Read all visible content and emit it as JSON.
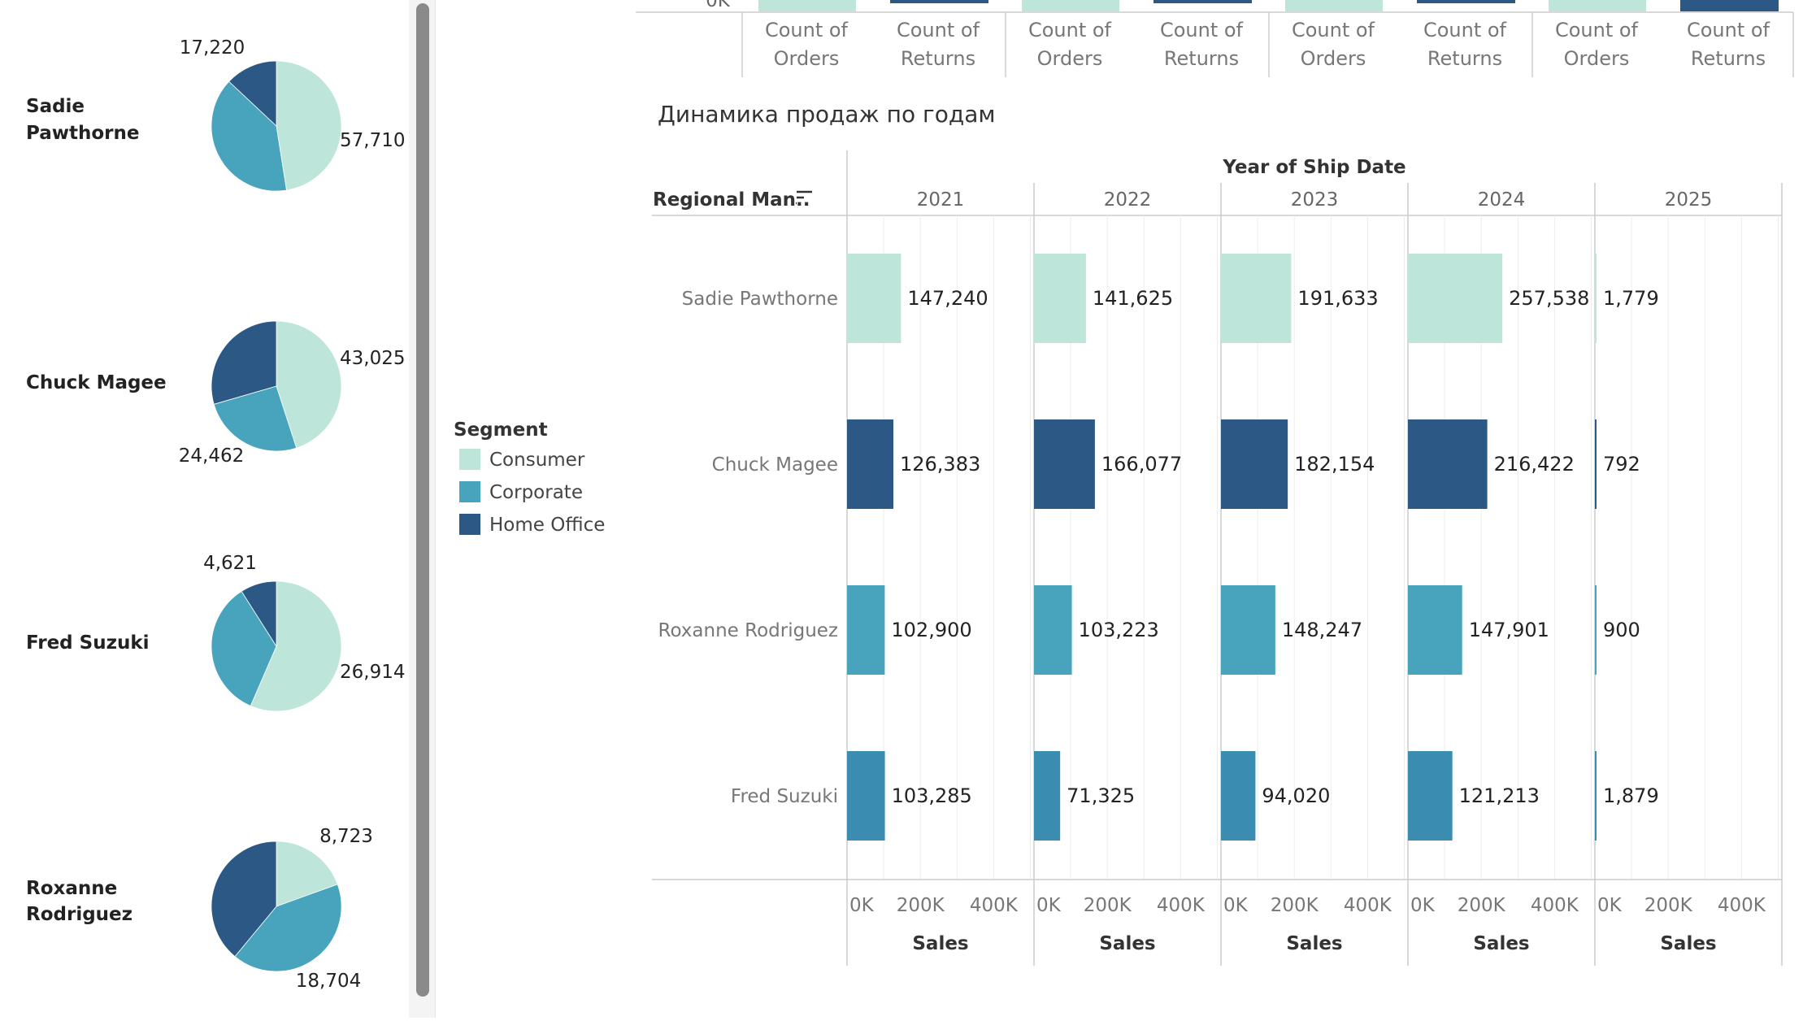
{
  "colors": {
    "consumer": "#bde5d9",
    "corporate": "#48a4bc",
    "corporate_alt": "#3a8db0",
    "home_office": "#2b5885",
    "grid": "#ededed",
    "border": "#cccccc",
    "label": "#666666",
    "value": "#222222",
    "scrollbar": "#8a8a8a"
  },
  "pies": {
    "items": [
      {
        "manager_lines": [
          "Sadie",
          "Pawthorne"
        ],
        "labels": {
          "home_office": "17,220",
          "consumer": "57,710"
        },
        "fractions": {
          "consumer": 0.475,
          "corporate": 0.395,
          "home_office": 0.13
        }
      },
      {
        "manager_lines": [
          "Chuck Magee"
        ],
        "labels": {
          "consumer": "43,025",
          "corporate": "24,462"
        },
        "fractions": {
          "consumer": 0.45,
          "corporate": 0.255,
          "home_office": 0.295
        }
      },
      {
        "manager_lines": [
          "Fred Suzuki"
        ],
        "labels": {
          "home_office": "4,621",
          "consumer": "26,914"
        },
        "fractions": {
          "consumer": 0.565,
          "corporate": 0.345,
          "home_office": 0.09
        }
      },
      {
        "manager_lines": [
          "Roxanne",
          "Rodriguez"
        ],
        "labels": {
          "consumer": "8,723",
          "corporate": "18,704"
        },
        "fractions": {
          "consumer": 0.195,
          "corporate": 0.415,
          "home_office": 0.39
        }
      }
    ]
  },
  "top_strip": {
    "tick": "0K",
    "headers": [
      [
        "Count of",
        "Orders"
      ],
      [
        "Count of",
        "Returns"
      ],
      [
        "Count of",
        "Orders"
      ],
      [
        "Count of",
        "Returns"
      ],
      [
        "Count of",
        "Orders"
      ],
      [
        "Count of",
        "Returns"
      ],
      [
        "Count of",
        "Orders"
      ],
      [
        "Count of",
        "Returns"
      ]
    ]
  },
  "legend": {
    "title": "Segment",
    "items": [
      {
        "label": "Consumer",
        "color_key": "consumer"
      },
      {
        "label": "Corporate",
        "color_key": "corporate"
      },
      {
        "label": "Home Office",
        "color_key": "home_office"
      }
    ]
  },
  "chart_data": {
    "type": "bar",
    "orientation": "horizontal",
    "title": "Динамика продаж по годам",
    "column_header_title": "Year of Ship Date",
    "row_header_title": "Regional Man..",
    "years": [
      "2021",
      "2022",
      "2023",
      "2024",
      "2025"
    ],
    "managers": [
      "Sadie Pawthorne",
      "Chuck Magee",
      "Roxanne Rodriguez",
      "Fred Suzuki"
    ],
    "bar_colors": [
      "consumer",
      "home_office",
      "corporate",
      "corporate_alt"
    ],
    "values": [
      [
        147240,
        141625,
        191633,
        257538,
        1779
      ],
      [
        126383,
        166077,
        182154,
        216422,
        792
      ],
      [
        102900,
        103223,
        148247,
        147901,
        900
      ],
      [
        103285,
        71325,
        94020,
        121213,
        1879
      ]
    ],
    "labels": [
      [
        "147,240",
        "141,625",
        "191,633",
        "257,538",
        "1,779"
      ],
      [
        "126,383",
        "166,077",
        "182,154",
        "216,422",
        "792"
      ],
      [
        "102,900",
        "103,223",
        "148,247",
        "147,901",
        "900"
      ],
      [
        "103,285",
        "71,325",
        "94,020",
        "121,213",
        "1,879"
      ]
    ],
    "xlim": [
      0,
      510000
    ],
    "ticks": [
      0,
      200000,
      400000
    ],
    "tick_labels": [
      "0K",
      "200K",
      "400K"
    ],
    "xlabel": "Sales",
    "grid": true
  }
}
